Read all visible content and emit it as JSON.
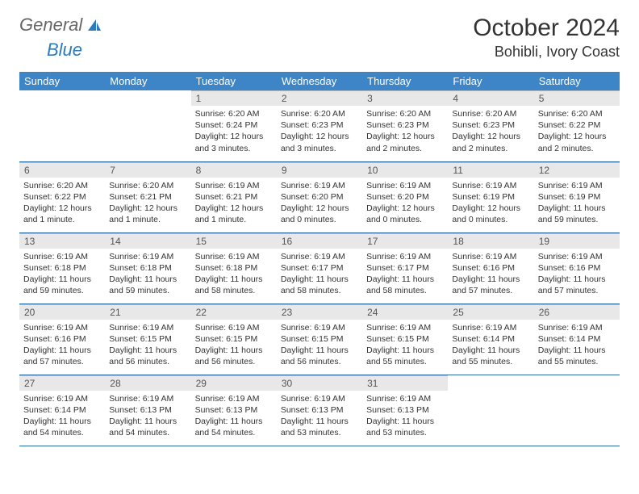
{
  "logo": {
    "text1": "General",
    "text2": "Blue",
    "icon_color": "#2b7bbf"
  },
  "title": "October 2024",
  "location": "Bohibli, Ivory Coast",
  "header_bg": "#3d85c6",
  "daynum_bg": "#e8e8e8",
  "border_color": "#2a6aa0",
  "weekdays": [
    "Sunday",
    "Monday",
    "Tuesday",
    "Wednesday",
    "Thursday",
    "Friday",
    "Saturday"
  ],
  "weeks": [
    [
      null,
      null,
      {
        "n": "1",
        "sr": "6:20 AM",
        "ss": "6:24 PM",
        "dl": "12 hours and 3 minutes."
      },
      {
        "n": "2",
        "sr": "6:20 AM",
        "ss": "6:23 PM",
        "dl": "12 hours and 3 minutes."
      },
      {
        "n": "3",
        "sr": "6:20 AM",
        "ss": "6:23 PM",
        "dl": "12 hours and 2 minutes."
      },
      {
        "n": "4",
        "sr": "6:20 AM",
        "ss": "6:23 PM",
        "dl": "12 hours and 2 minutes."
      },
      {
        "n": "5",
        "sr": "6:20 AM",
        "ss": "6:22 PM",
        "dl": "12 hours and 2 minutes."
      }
    ],
    [
      {
        "n": "6",
        "sr": "6:20 AM",
        "ss": "6:22 PM",
        "dl": "12 hours and 1 minute."
      },
      {
        "n": "7",
        "sr": "6:20 AM",
        "ss": "6:21 PM",
        "dl": "12 hours and 1 minute."
      },
      {
        "n": "8",
        "sr": "6:19 AM",
        "ss": "6:21 PM",
        "dl": "12 hours and 1 minute."
      },
      {
        "n": "9",
        "sr": "6:19 AM",
        "ss": "6:20 PM",
        "dl": "12 hours and 0 minutes."
      },
      {
        "n": "10",
        "sr": "6:19 AM",
        "ss": "6:20 PM",
        "dl": "12 hours and 0 minutes."
      },
      {
        "n": "11",
        "sr": "6:19 AM",
        "ss": "6:19 PM",
        "dl": "12 hours and 0 minutes."
      },
      {
        "n": "12",
        "sr": "6:19 AM",
        "ss": "6:19 PM",
        "dl": "11 hours and 59 minutes."
      }
    ],
    [
      {
        "n": "13",
        "sr": "6:19 AM",
        "ss": "6:18 PM",
        "dl": "11 hours and 59 minutes."
      },
      {
        "n": "14",
        "sr": "6:19 AM",
        "ss": "6:18 PM",
        "dl": "11 hours and 59 minutes."
      },
      {
        "n": "15",
        "sr": "6:19 AM",
        "ss": "6:18 PM",
        "dl": "11 hours and 58 minutes."
      },
      {
        "n": "16",
        "sr": "6:19 AM",
        "ss": "6:17 PM",
        "dl": "11 hours and 58 minutes."
      },
      {
        "n": "17",
        "sr": "6:19 AM",
        "ss": "6:17 PM",
        "dl": "11 hours and 58 minutes."
      },
      {
        "n": "18",
        "sr": "6:19 AM",
        "ss": "6:16 PM",
        "dl": "11 hours and 57 minutes."
      },
      {
        "n": "19",
        "sr": "6:19 AM",
        "ss": "6:16 PM",
        "dl": "11 hours and 57 minutes."
      }
    ],
    [
      {
        "n": "20",
        "sr": "6:19 AM",
        "ss": "6:16 PM",
        "dl": "11 hours and 57 minutes."
      },
      {
        "n": "21",
        "sr": "6:19 AM",
        "ss": "6:15 PM",
        "dl": "11 hours and 56 minutes."
      },
      {
        "n": "22",
        "sr": "6:19 AM",
        "ss": "6:15 PM",
        "dl": "11 hours and 56 minutes."
      },
      {
        "n": "23",
        "sr": "6:19 AM",
        "ss": "6:15 PM",
        "dl": "11 hours and 56 minutes."
      },
      {
        "n": "24",
        "sr": "6:19 AM",
        "ss": "6:15 PM",
        "dl": "11 hours and 55 minutes."
      },
      {
        "n": "25",
        "sr": "6:19 AM",
        "ss": "6:14 PM",
        "dl": "11 hours and 55 minutes."
      },
      {
        "n": "26",
        "sr": "6:19 AM",
        "ss": "6:14 PM",
        "dl": "11 hours and 55 minutes."
      }
    ],
    [
      {
        "n": "27",
        "sr": "6:19 AM",
        "ss": "6:14 PM",
        "dl": "11 hours and 54 minutes."
      },
      {
        "n": "28",
        "sr": "6:19 AM",
        "ss": "6:13 PM",
        "dl": "11 hours and 54 minutes."
      },
      {
        "n": "29",
        "sr": "6:19 AM",
        "ss": "6:13 PM",
        "dl": "11 hours and 54 minutes."
      },
      {
        "n": "30",
        "sr": "6:19 AM",
        "ss": "6:13 PM",
        "dl": "11 hours and 53 minutes."
      },
      {
        "n": "31",
        "sr": "6:19 AM",
        "ss": "6:13 PM",
        "dl": "11 hours and 53 minutes."
      },
      null,
      null
    ]
  ]
}
